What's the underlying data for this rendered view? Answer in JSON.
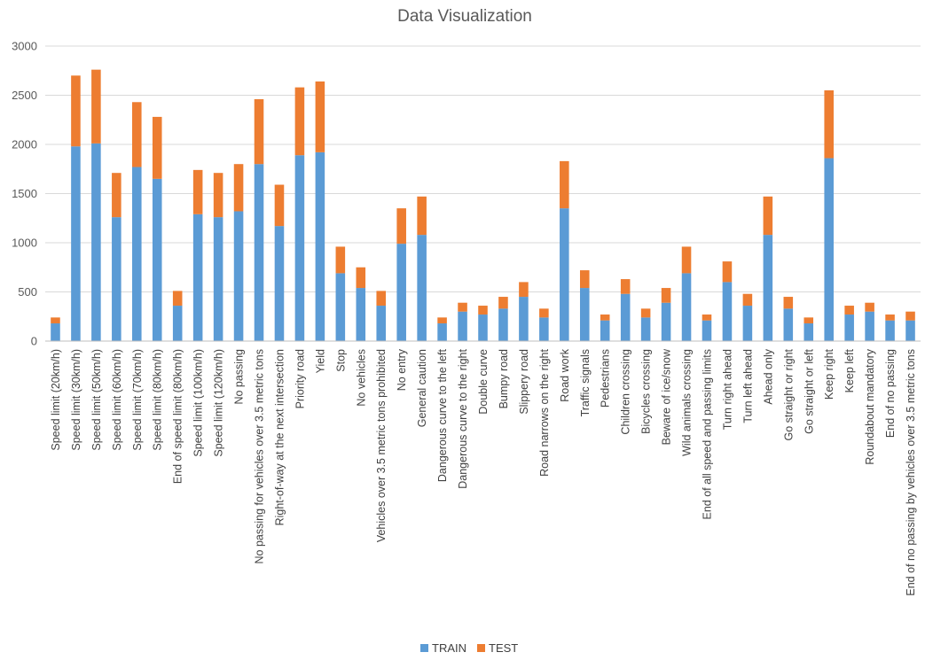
{
  "chart_data": {
    "type": "bar",
    "stacked": true,
    "title": "Data Visualization",
    "xlabel": "",
    "ylabel": "",
    "ylim": [
      0,
      3000
    ],
    "yticks": [
      "0",
      "500",
      "1000",
      "1500",
      "2000",
      "2500",
      "3000"
    ],
    "grid": true,
    "legend_position": "bottom",
    "categories": [
      "Speed limit (20km/h)",
      "Speed limit (30km/h)",
      "Speed limit (50km/h)",
      "Speed limit (60km/h)",
      "Speed limit (70km/h)",
      "Speed limit (80km/h)",
      "End of speed limit (80km/h)",
      "Speed limit (100km/h)",
      "Speed limit (120km/h)",
      "No passing",
      "No passing for vehicles over 3.5 metric tons",
      "Right-of-way at the next intersection",
      "Priority road",
      "Yield",
      "Stop",
      "No vehicles",
      "Vehicles over 3.5 metric tons prohibited",
      "No entry",
      "General caution",
      "Dangerous curve to the left",
      "Dangerous curve to the right",
      "Double curve",
      "Bumpy road",
      "Slippery road",
      "Road narrows on the right",
      "Road work",
      "Traffic signals",
      "Pedestrians",
      "Children crossing",
      "Bicycles crossing",
      "Beware of ice/snow",
      "Wild animals crossing",
      "End of all speed and passing limits",
      "Turn right ahead",
      "Turn left ahead",
      "Ahead only",
      "Go straight or right",
      "Go straight or left",
      "Keep right",
      "Keep left",
      "Roundabout mandatory",
      "End of no passing",
      "End of no passing by vehicles over 3.5 metric tons"
    ],
    "series": [
      {
        "name": "TRAIN",
        "color": "#5b9bd5",
        "values": [
          180,
          1980,
          2010,
          1260,
          1770,
          1650,
          360,
          1290,
          1260,
          1320,
          1800,
          1170,
          1890,
          1920,
          690,
          540,
          360,
          990,
          1080,
          180,
          300,
          270,
          330,
          450,
          240,
          1350,
          540,
          210,
          480,
          240,
          390,
          690,
          210,
          600,
          360,
          1080,
          330,
          180,
          1860,
          270,
          300,
          210,
          210
        ]
      },
      {
        "name": "TEST",
        "color": "#ed7d31",
        "values": [
          60,
          720,
          750,
          450,
          660,
          630,
          150,
          450,
          450,
          480,
          660,
          420,
          690,
          720,
          270,
          210,
          150,
          360,
          390,
          60,
          90,
          90,
          120,
          150,
          90,
          480,
          180,
          60,
          150,
          90,
          150,
          270,
          60,
          210,
          120,
          390,
          120,
          60,
          690,
          90,
          90,
          60,
          90
        ]
      }
    ]
  }
}
